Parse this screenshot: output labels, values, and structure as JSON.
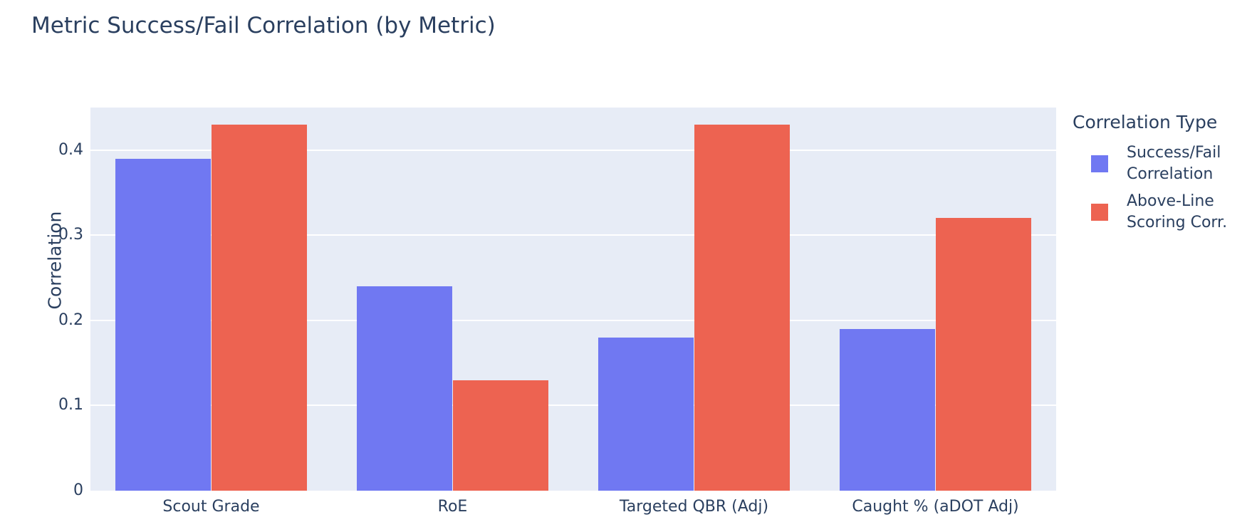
{
  "title": "Metric Success/Fail Correlation (by Metric)",
  "colors": {
    "page_background": "#ffffff",
    "plot_background": "#e7ecf6",
    "gridline": "#ffffff",
    "text": "#2a3f5f",
    "series_blue": "#7078f2",
    "series_red": "#ed6351"
  },
  "legend": {
    "title": "Correlation Type",
    "items": [
      {
        "label_lines": [
          "Success/Fail",
          "Correlation"
        ],
        "color": "#7078f2"
      },
      {
        "label_lines": [
          "Above-Line",
          "Scoring Corr."
        ],
        "color": "#ed6351"
      }
    ]
  },
  "chart_data": {
    "type": "bar",
    "title": "Metric Success/Fail Correlation (by Metric)",
    "categories": [
      "Scout Grade",
      "RoE",
      "Targeted QBR (Adj)",
      "Caught % (aDOT Adj)"
    ],
    "series": [
      {
        "name": "Success/Fail Correlation",
        "color": "#7078f2",
        "values": [
          0.39,
          0.24,
          0.18,
          0.19
        ]
      },
      {
        "name": "Above-Line Scoring Corr.",
        "color": "#ed6351",
        "values": [
          0.43,
          0.13,
          0.43,
          0.32
        ]
      }
    ],
    "xlabel": "",
    "ylabel": "Correlation",
    "ylim": [
      0,
      0.45
    ],
    "yticks": [
      0,
      0.1,
      0.2,
      0.3,
      0.4
    ],
    "ytick_labels": [
      "0",
      "0.1",
      "0.2",
      "0.3",
      "0.4"
    ],
    "grid": true,
    "legend_title": "Correlation Type",
    "legend_position": "right",
    "bar_mode": "group"
  }
}
